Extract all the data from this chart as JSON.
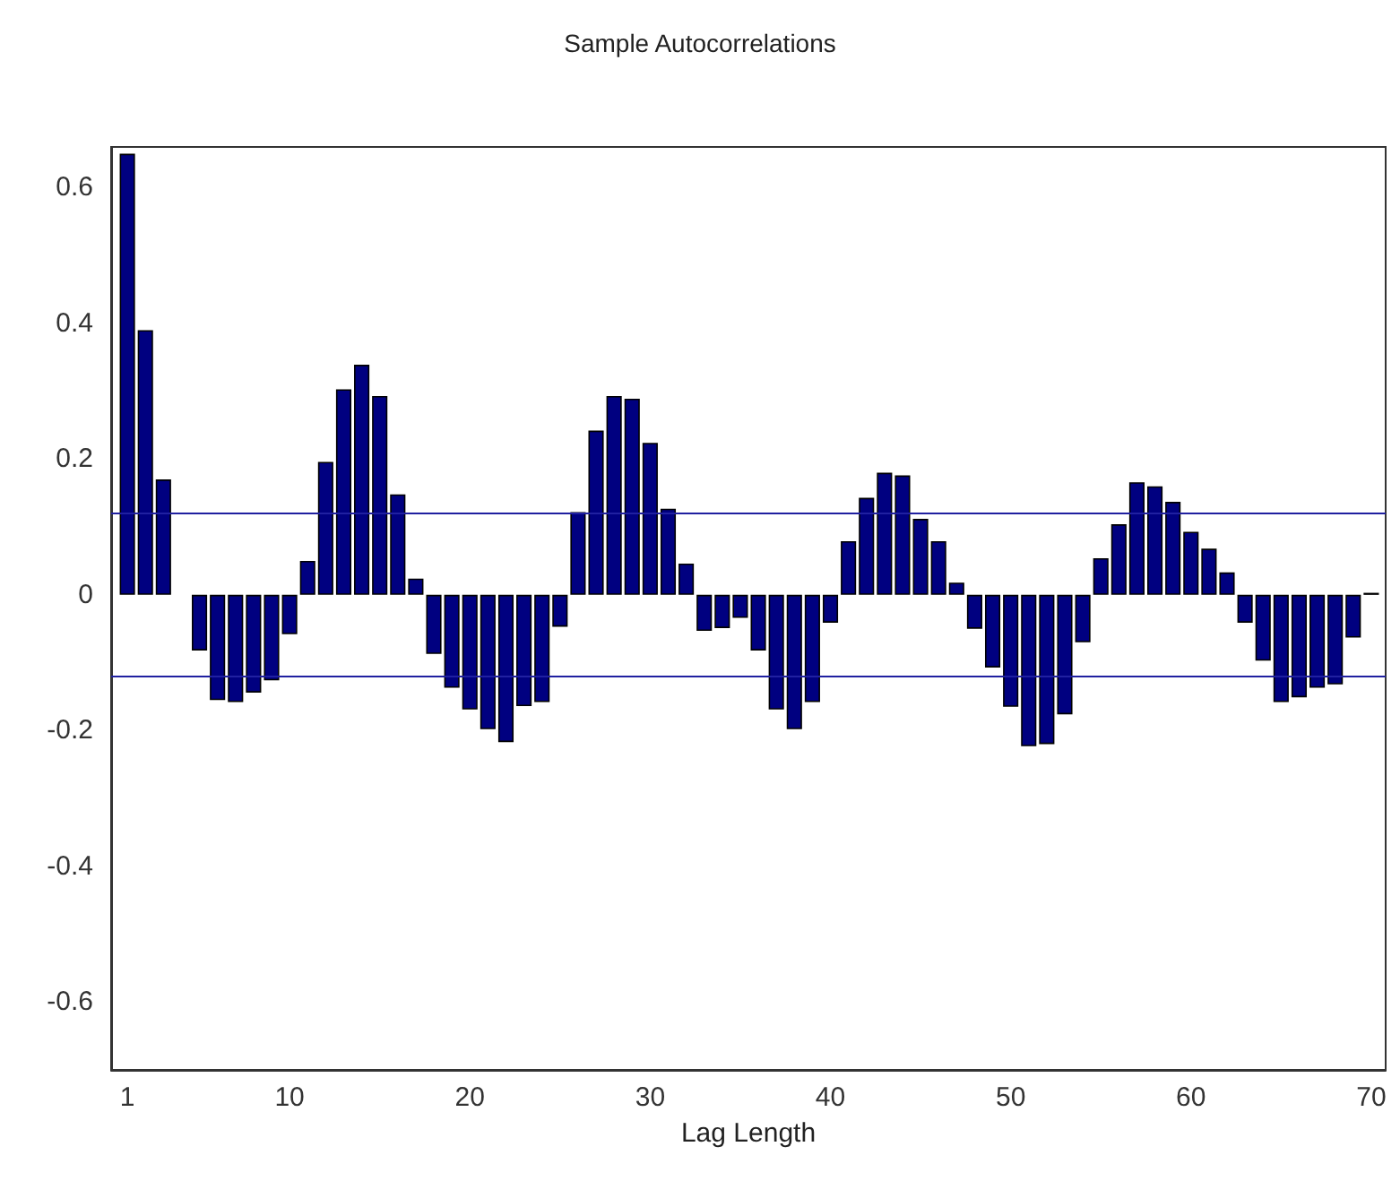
{
  "chart_data": {
    "type": "bar",
    "title": "Sample Autocorrelations",
    "xlabel": "Lag Length",
    "x": [
      1,
      2,
      3,
      4,
      5,
      6,
      7,
      8,
      9,
      10,
      11,
      12,
      13,
      14,
      15,
      16,
      17,
      18,
      19,
      20,
      21,
      22,
      23,
      24,
      25,
      26,
      27,
      28,
      29,
      30,
      31,
      32,
      33,
      34,
      35,
      36,
      37,
      38,
      39,
      40,
      41,
      42,
      43,
      44,
      45,
      46,
      47,
      48,
      49,
      50,
      51,
      52,
      53,
      54,
      55,
      56,
      57,
      58,
      59,
      60,
      61,
      62,
      63,
      64,
      65,
      66,
      67,
      68,
      69,
      70
    ],
    "values": [
      0.65,
      0.39,
      0.17,
      null,
      -0.082,
      -0.155,
      -0.158,
      -0.144,
      -0.126,
      -0.058,
      0.05,
      0.196,
      0.303,
      0.339,
      0.293,
      0.148,
      0.024,
      -0.087,
      -0.137,
      -0.169,
      -0.198,
      -0.217,
      -0.164,
      -0.158,
      -0.047,
      0.122,
      0.242,
      0.293,
      0.289,
      0.224,
      0.127,
      0.046,
      -0.053,
      -0.049,
      -0.034,
      -0.082,
      -0.169,
      -0.198,
      -0.158,
      -0.041,
      0.079,
      0.143,
      0.18,
      0.176,
      0.112,
      0.079,
      0.018,
      -0.05,
      -0.107,
      -0.165,
      -0.223,
      -0.22,
      -0.176,
      -0.07,
      0.054,
      0.104,
      0.166,
      0.16,
      0.137,
      0.093,
      0.068,
      0.033,
      -0.041,
      -0.097,
      -0.158,
      -0.151,
      -0.137,
      -0.132,
      -0.063,
      0.003
    ],
    "color": "#000080",
    "xlim": [
      0.1,
      70.8
    ],
    "xticks": [
      1,
      10,
      20,
      30,
      40,
      50,
      60,
      70
    ],
    "ylim": [
      -0.7,
      0.66
    ],
    "yticks": [
      -0.6,
      -0.4,
      -0.2,
      0,
      0.2,
      0.4,
      0.6
    ],
    "ref_lines": [
      {
        "axis": "y",
        "value": 0.122,
        "color": "#2020a0"
      },
      {
        "axis": "y",
        "value": -0.122,
        "color": "#2020a0"
      }
    ],
    "grid": false
  }
}
